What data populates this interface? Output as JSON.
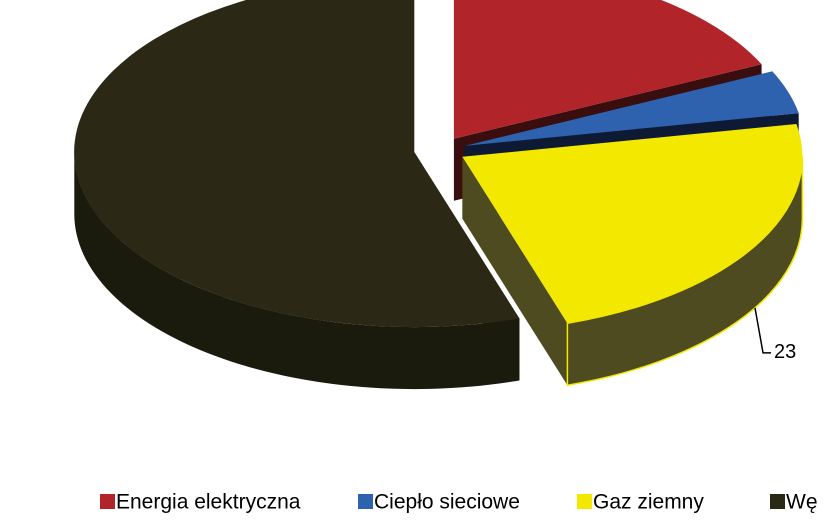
{
  "chart_data": {
    "type": "pie",
    "categories": [
      "Energia elektryczna",
      "Ciepło sieciowe",
      "Gaz ziemny",
      "Wę"
    ],
    "values": [
      18,
      4,
      23,
      55
    ],
    "value_labels": [
      null,
      null,
      "23",
      null
    ],
    "colors": [
      "#b0242a",
      "#2e62ae",
      "#f2e800",
      "#2b2916"
    ],
    "side_colors": [
      "#3a0d0e",
      "#0e1a33",
      "#4d4b1f",
      "#1a1a0d"
    ],
    "legend": "bottom"
  }
}
